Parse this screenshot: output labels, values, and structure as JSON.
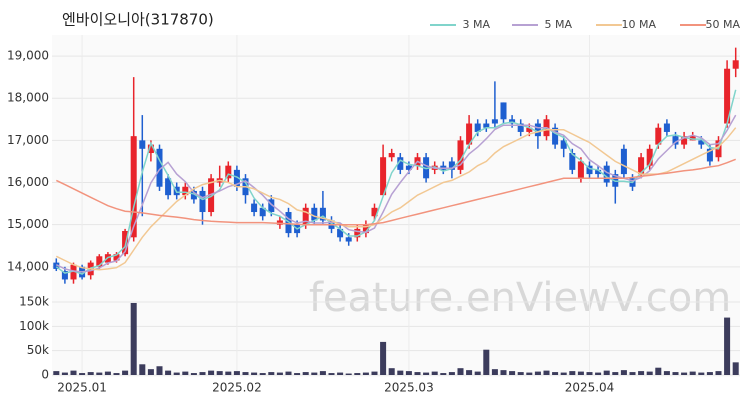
{
  "chart_data": {
    "type": "candlestick",
    "title": "엔바이오니아(317870)",
    "watermark": "feature.enViewV.com",
    "categories": [
      null,
      null,
      null,
      "2025.01",
      null,
      null,
      null,
      null,
      null,
      null,
      null,
      null,
      null,
      null,
      null,
      null,
      null,
      null,
      null,
      null,
      null,
      "2025.02",
      null,
      null,
      null,
      null,
      null,
      null,
      null,
      null,
      null,
      null,
      null,
      null,
      null,
      null,
      null,
      null,
      null,
      null,
      null,
      "2025.03",
      null,
      null,
      null,
      null,
      null,
      null,
      null,
      null,
      null,
      null,
      null,
      null,
      null,
      null,
      null,
      null,
      null,
      null,
      null,
      null,
      "2025.04",
      null,
      null,
      null,
      null,
      null,
      null,
      null,
      null,
      null,
      null,
      null,
      null,
      null,
      null,
      null,
      null,
      null
    ],
    "open": [
      14100,
      13900,
      13700,
      14000,
      13800,
      14000,
      14100,
      14150,
      14300,
      14700,
      17000,
      16700,
      16800,
      16100,
      15900,
      15700,
      15800,
      15800,
      15300,
      16000,
      16100,
      16300,
      16100,
      15500,
      15400,
      15600,
      15000,
      15300,
      15000,
      15000,
      15400,
      15400,
      15100,
      14900,
      14700,
      14700,
      14800,
      15200,
      15700,
      16600,
      16600,
      16400,
      16400,
      16600,
      16300,
      16400,
      16500,
      16300,
      16900,
      17400,
      17400,
      17500,
      17900,
      17500,
      17400,
      17200,
      17400,
      17100,
      17300,
      17000,
      16700,
      16100,
      16400,
      16300,
      16400,
      16200,
      16800,
      16100,
      16200,
      16400,
      16900,
      17400,
      17100,
      16900,
      17000,
      17000,
      16800,
      16600,
      17400,
      18700
    ],
    "high": [
      14200,
      14000,
      14100,
      14050,
      14150,
      14300,
      14350,
      14350,
      14900,
      18500,
      17600,
      17000,
      16900,
      16200,
      16000,
      16000,
      15900,
      15900,
      16200,
      16400,
      16500,
      16400,
      16200,
      15600,
      15500,
      15700,
      15200,
      15400,
      15100,
      15500,
      15500,
      15800,
      15200,
      15000,
      14800,
      15000,
      15100,
      15500,
      16900,
      16800,
      16700,
      16500,
      16700,
      16700,
      16500,
      16500,
      16600,
      17100,
      17600,
      17500,
      17500,
      18400,
      17900,
      17600,
      17500,
      17400,
      17500,
      17600,
      17400,
      17100,
      16800,
      16600,
      16500,
      16400,
      16500,
      16300,
      16900,
      16200,
      16700,
      16900,
      17400,
      17500,
      17200,
      17200,
      17200,
      17100,
      16900,
      17100,
      18900,
      19200
    ],
    "low": [
      13900,
      13600,
      13600,
      13700,
      13700,
      13950,
      14050,
      14100,
      14250,
      14600,
      15200,
      16500,
      15800,
      15600,
      15600,
      15600,
      15500,
      15000,
      15200,
      15900,
      16000,
      15800,
      15500,
      15200,
      15100,
      15200,
      14900,
      14700,
      14700,
      14900,
      15000,
      15000,
      14800,
      14600,
      14500,
      14600,
      14700,
      15100,
      15700,
      16500,
      16200,
      16200,
      16300,
      16000,
      16200,
      16200,
      16100,
      16200,
      16800,
      17100,
      17200,
      17300,
      17400,
      17300,
      17100,
      17100,
      16800,
      17000,
      16800,
      16600,
      16200,
      16000,
      16100,
      16100,
      15900,
      15500,
      16100,
      15800,
      16100,
      16300,
      16800,
      17100,
      16800,
      16800,
      17000,
      16800,
      16400,
      16500,
      17300,
      18500
    ],
    "close": [
      13950,
      13700,
      14050,
      13750,
      14100,
      14250,
      14300,
      14300,
      14850,
      17100,
      16800,
      16900,
      15900,
      15700,
      15700,
      15900,
      15600,
      15300,
      16100,
      16100,
      16400,
      15900,
      15700,
      15300,
      15200,
      15300,
      15100,
      14800,
      14800,
      15400,
      15100,
      15100,
      14900,
      14700,
      14600,
      14900,
      15000,
      15400,
      16600,
      16700,
      16300,
      16300,
      16600,
      16100,
      16400,
      16300,
      16300,
      17000,
      17400,
      17200,
      17300,
      17400,
      17500,
      17400,
      17200,
      17300,
      17100,
      17500,
      16900,
      16800,
      16300,
      16500,
      16200,
      16200,
      16000,
      15900,
      16200,
      15900,
      16600,
      16800,
      17300,
      17200,
      16900,
      17100,
      17100,
      16900,
      16500,
      17000,
      18700,
      18900
    ],
    "volume": [
      8000,
      5000,
      9000,
      4000,
      6000,
      5000,
      7000,
      4000,
      9000,
      148000,
      22000,
      12000,
      18000,
      9000,
      5000,
      7000,
      4000,
      6000,
      9000,
      8000,
      7000,
      8000,
      6000,
      5000,
      4000,
      6000,
      5000,
      7000,
      4000,
      6000,
      5000,
      8000,
      4000,
      5000,
      3000,
      4000,
      5000,
      7000,
      68000,
      14000,
      9000,
      8000,
      6000,
      5000,
      7000,
      4000,
      6000,
      14000,
      10000,
      7000,
      52000,
      12000,
      10000,
      8000,
      6000,
      5000,
      7000,
      9000,
      6000,
      5000,
      8000,
      7000,
      6000,
      5000,
      9000,
      6000,
      10000,
      6000,
      8000,
      7000,
      15000,
      8000,
      6000,
      5000,
      7000,
      5000,
      6000,
      8000,
      118000,
      26000
    ],
    "up_color": "#e8242b",
    "down_color": "#1e5fd0",
    "volume_color": "#3c3c5c",
    "series": [
      {
        "name": "3 MA",
        "color": "#80d4cb",
        "values": [
          14000,
          13850,
          13900,
          13830,
          13970,
          14030,
          14220,
          14280,
          14480,
          15420,
          16250,
          16930,
          16530,
          16170,
          15770,
          15770,
          15730,
          15600,
          15670,
          15830,
          16200,
          16130,
          16000,
          15630,
          15400,
          15270,
          15200,
          15070,
          14900,
          15000,
          15100,
          15200,
          15030,
          14900,
          14730,
          14730,
          14830,
          15100,
          15670,
          16230,
          16530,
          16430,
          16400,
          16330,
          16370,
          16270,
          16330,
          16530,
          16900,
          17200,
          17300,
          17300,
          17400,
          17430,
          17370,
          17300,
          17200,
          17300,
          17170,
          17070,
          16670,
          16530,
          16330,
          16300,
          16130,
          16030,
          16030,
          16000,
          16230,
          16430,
          16900,
          17100,
          17130,
          17070,
          17030,
          17030,
          16830,
          16800,
          17400,
          18200
        ]
      },
      {
        "name": "5 MA",
        "color": "#b7a1d3",
        "values": [
          14050,
          13950,
          13900,
          13880,
          13910,
          13970,
          14090,
          14140,
          14360,
          14960,
          15470,
          15990,
          16310,
          16480,
          16200,
          16020,
          15760,
          15640,
          15720,
          15800,
          15900,
          15960,
          16040,
          15880,
          15700,
          15480,
          15320,
          15140,
          15040,
          15080,
          15040,
          15040,
          15060,
          15040,
          14880,
          14840,
          14820,
          14920,
          15300,
          15720,
          16000,
          16260,
          16500,
          16400,
          16340,
          16340,
          16340,
          16420,
          16680,
          16840,
          17040,
          17260,
          17360,
          17360,
          17360,
          17360,
          17300,
          17300,
          17200,
          17120,
          16920,
          16800,
          16540,
          16400,
          16240,
          16160,
          16100,
          16040,
          16120,
          16280,
          16560,
          16760,
          16960,
          17060,
          17120,
          17060,
          16900,
          16920,
          17240,
          17600
        ]
      },
      {
        "name": "10 MA",
        "color": "#f2c893",
        "values": [
          14250,
          14150,
          14050,
          13980,
          13950,
          13930,
          13950,
          13980,
          14100,
          14400,
          14700,
          14950,
          15150,
          15350,
          15550,
          15700,
          15850,
          15950,
          16000,
          16050,
          16000,
          15900,
          15900,
          15850,
          15750,
          15650,
          15600,
          15500,
          15350,
          15300,
          15200,
          15150,
          15100,
          15000,
          14950,
          14950,
          14950,
          15000,
          15150,
          15300,
          15400,
          15550,
          15700,
          15800,
          15900,
          16000,
          16050,
          16150,
          16250,
          16400,
          16500,
          16700,
          16850,
          16950,
          17050,
          17150,
          17200,
          17250,
          17250,
          17250,
          17150,
          17050,
          16950,
          16800,
          16650,
          16500,
          16400,
          16300,
          16200,
          16200,
          16200,
          16250,
          16350,
          16450,
          16550,
          16650,
          16750,
          16850,
          17050,
          17300
        ]
      },
      {
        "name": "50 MA",
        "color": "#f2937d",
        "values": [
          16050,
          15950,
          15850,
          15750,
          15650,
          15550,
          15450,
          15380,
          15320,
          15300,
          15280,
          15250,
          15220,
          15200,
          15180,
          15150,
          15120,
          15100,
          15080,
          15070,
          15060,
          15050,
          15050,
          15050,
          15050,
          15040,
          15030,
          15020,
          15010,
          15000,
          15000,
          15000,
          15000,
          15000,
          15000,
          15000,
          15000,
          15020,
          15050,
          15100,
          15150,
          15200,
          15250,
          15300,
          15350,
          15400,
          15450,
          15500,
          15550,
          15600,
          15650,
          15700,
          15750,
          15800,
          15850,
          15900,
          15950,
          16000,
          16050,
          16100,
          16100,
          16100,
          16100,
          16100,
          16100,
          16100,
          16100,
          16120,
          16150,
          16170,
          16200,
          16220,
          16250,
          16280,
          16300,
          16330,
          16370,
          16400,
          16470,
          16550
        ]
      }
    ],
    "ylim": [
      13450,
      19500
    ],
    "yticks": [
      {
        "value": 14000,
        "label": "14,000"
      },
      {
        "value": 15000,
        "label": "15,000"
      },
      {
        "value": 16000,
        "label": "16,000"
      },
      {
        "value": 17000,
        "label": "17,000"
      },
      {
        "value": 18000,
        "label": "18,000"
      },
      {
        "value": 19000,
        "label": "19,000"
      }
    ],
    "y2lim": [
      0,
      150000
    ],
    "y2ticks": [
      0,
      {
        "value": 50000,
        "label": "50k"
      },
      {
        "value": 100000,
        "label": "100k"
      },
      {
        "value": 150000,
        "label": "150k"
      }
    ],
    "grid": true,
    "legend": "top-right"
  }
}
